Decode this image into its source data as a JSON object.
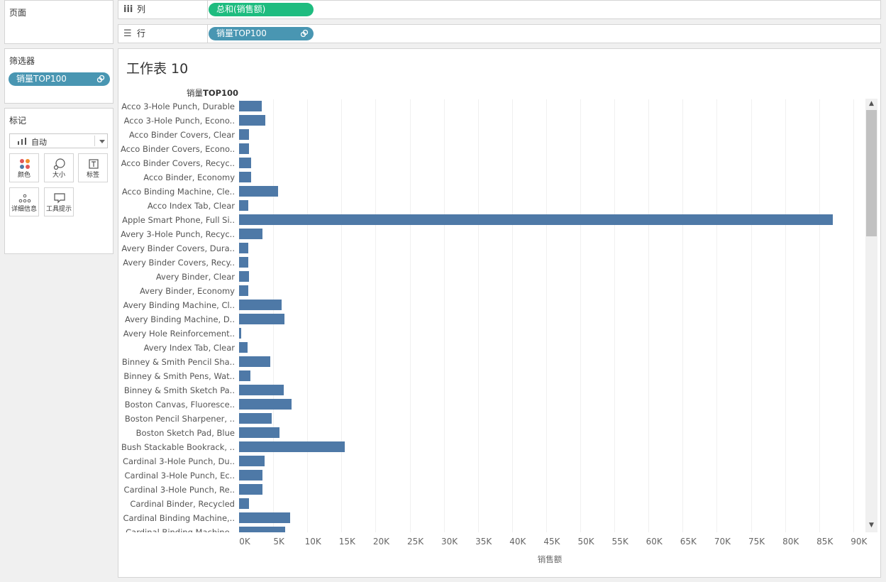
{
  "pages_panel": {
    "title": "页面"
  },
  "shelves": {
    "columns": {
      "label": "列",
      "pill": "总和(销售额)",
      "pill_color": "#1ebc7f"
    },
    "rows": {
      "label": "行",
      "pill": "销量TOP100",
      "pill_color": "#4996b2"
    }
  },
  "filters_panel": {
    "title": "筛选器",
    "pill": "销量TOP100",
    "pill_color": "#4996b2"
  },
  "marks_panel": {
    "title": "标记",
    "mark_type": "自动",
    "buttons": {
      "color": "颜色",
      "size": "大小",
      "label": "标签",
      "detail": "详细信息",
      "tooltip": "工具提示"
    }
  },
  "sheet": {
    "title": "工作表 10",
    "row_header_prefix": "销量",
    "row_header_bold": "TOP100"
  },
  "chart_data": {
    "type": "bar",
    "orientation": "horizontal",
    "title": "工作表 10",
    "xlabel": "销售额",
    "ylabel": "销量TOP100",
    "xlim": [
      0,
      92000
    ],
    "grid": true,
    "bar_color": "#4e79a7",
    "tick_labels": [
      "0K",
      "5K",
      "10K",
      "15K",
      "20K",
      "25K",
      "30K",
      "35K",
      "40K",
      "45K",
      "50K",
      "55K",
      "60K",
      "65K",
      "70K",
      "75K",
      "80K",
      "85K",
      "90K"
    ],
    "categories": [
      "Acco 3-Hole Punch, Durable",
      "Acco 3-Hole Punch, Econo..",
      "Acco Binder Covers, Clear",
      "Acco Binder Covers, Econo..",
      "Acco Binder Covers, Recyc..",
      "Acco Binder, Economy",
      "Acco Binding Machine, Cle..",
      "Acco Index Tab, Clear",
      "Apple Smart Phone, Full Si..",
      "Avery 3-Hole Punch, Recyc..",
      "Avery Binder Covers, Dura..",
      "Avery Binder Covers, Recy..",
      "Avery Binder, Clear",
      "Avery Binder, Economy",
      "Avery Binding Machine, Cl..",
      "Avery Binding Machine, D..",
      "Avery Hole Reinforcement..",
      "Avery Index Tab, Clear",
      "Binney & Smith Pencil Sha..",
      "Binney & Smith Pens, Wat..",
      "Binney & Smith Sketch Pa..",
      "Boston Canvas, Fluoresce..",
      "Boston Pencil Sharpener, ..",
      "Boston Sketch Pad, Blue",
      "Bush Stackable Bookrack, ..",
      "Cardinal 3-Hole Punch, Du..",
      "Cardinal 3-Hole Punch, Ec..",
      "Cardinal 3-Hole Punch, Re..",
      "Cardinal Binder, Recycled",
      "Cardinal Binding Machine,..",
      "Cardinal Binding Machine.."
    ],
    "values": [
      3300,
      3800,
      1500,
      1500,
      1800,
      1800,
      5700,
      1300,
      87000,
      3400,
      1400,
      1300,
      1500,
      1300,
      6200,
      6700,
      300,
      1200,
      4600,
      1700,
      6500,
      7700,
      4800,
      5900,
      15500,
      3700,
      3400,
      3400,
      1500,
      7500,
      6800
    ]
  }
}
